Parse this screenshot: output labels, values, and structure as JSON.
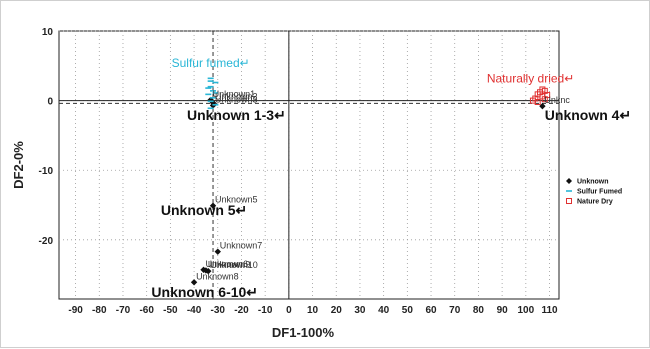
{
  "chart_data": {
    "type": "scatter",
    "xlabel": "DF1-100%",
    "ylabel": "DF2-0%",
    "xlim": [
      -97,
      114
    ],
    "ylim": [
      -28.5,
      10
    ],
    "xticks": [
      -90,
      -80,
      -70,
      -60,
      -50,
      -40,
      -30,
      -20,
      -10,
      0,
      10,
      20,
      30,
      40,
      50,
      60,
      70,
      80,
      90,
      100,
      110
    ],
    "yticks": [
      10,
      0,
      -10,
      -20
    ],
    "grid": true,
    "legend_position": "right",
    "colors": {
      "unknown": "#111111",
      "sulfur": "#29b6d6",
      "nature": "#e03030"
    },
    "series": [
      {
        "name": "Unknown",
        "marker": "diamond",
        "points": [
          {
            "x": -33,
            "y": 0.1,
            "label": "Unknown1"
          },
          {
            "x": -32,
            "y": -0.3,
            "label": "Unknown2"
          },
          {
            "x": -32,
            "y": -0.7,
            "label": "Unknown3"
          },
          {
            "x": 107,
            "y": -0.8,
            "label": "Unknc"
          },
          {
            "x": -32,
            "y": -15.1,
            "label": "Unknown5"
          },
          {
            "x": -36,
            "y": -24.3,
            "label": "Unknown6"
          },
          {
            "x": -30,
            "y": -21.7,
            "label": "Unknown7"
          },
          {
            "x": -40,
            "y": -26.1,
            "label": "Unknown8"
          },
          {
            "x": -35,
            "y": -24.4,
            "label": "Unknown9"
          },
          {
            "x": -34,
            "y": -24.5,
            "label": "Unknown10"
          }
        ]
      },
      {
        "name": "Sulfur Fumed",
        "marker": "dash",
        "points": [
          {
            "x": -33,
            "y": 3.2
          },
          {
            "x": -31,
            "y": 2.6
          },
          {
            "x": -33,
            "y": 2.0
          },
          {
            "x": -32,
            "y": 1.4
          },
          {
            "x": -34,
            "y": 0.9
          },
          {
            "x": -32,
            "y": 0.4
          },
          {
            "x": -33,
            "y": -0.1
          },
          {
            "x": -31,
            "y": -0.6
          },
          {
            "x": -33,
            "y": -1.1
          },
          {
            "x": -34,
            "y": 1.8
          },
          {
            "x": -31,
            "y": 1.1
          },
          {
            "x": -33,
            "y": 2.8
          }
        ]
      },
      {
        "name": "Nature Dry",
        "marker": "square",
        "points": [
          {
            "x": 104,
            "y": 0.3
          },
          {
            "x": 105,
            "y": 0.9
          },
          {
            "x": 106,
            "y": 1.2
          },
          {
            "x": 107,
            "y": 0.6
          },
          {
            "x": 108,
            "y": 1.4
          },
          {
            "x": 109,
            "y": 0.8
          },
          {
            "x": 103,
            "y": 0.0
          },
          {
            "x": 105,
            "y": -0.2
          },
          {
            "x": 107,
            "y": 1.6
          },
          {
            "x": 108,
            "y": 0.2
          }
        ]
      }
    ],
    "class_labels": [
      {
        "text": "Sulfur fumed↵",
        "x": -33,
        "y": 4.8,
        "color": "#29b6d6"
      },
      {
        "text": "Naturally dried↵",
        "x": 102,
        "y": 2.6,
        "color": "#e03030"
      }
    ],
    "group_labels": [
      {
        "text": "Unknown 1-3↵",
        "x": -43,
        "y": -2.8
      },
      {
        "text": "Unknown 4↵",
        "x": 108,
        "y": -2.8
      },
      {
        "text": "Unknown 5↵",
        "x": -54,
        "y": -16.4
      },
      {
        "text": "Unknown 6-10↵",
        "x": -58,
        "y": -28.2
      }
    ]
  },
  "legend": {
    "items": [
      {
        "label": "Unknown",
        "marker": "diamond",
        "color": "#111111"
      },
      {
        "label": "Sulfur Fumed",
        "marker": "dash",
        "color": "#29b6d6"
      },
      {
        "label": "Nature Dry",
        "marker": "square",
        "color": "#e03030"
      }
    ]
  }
}
